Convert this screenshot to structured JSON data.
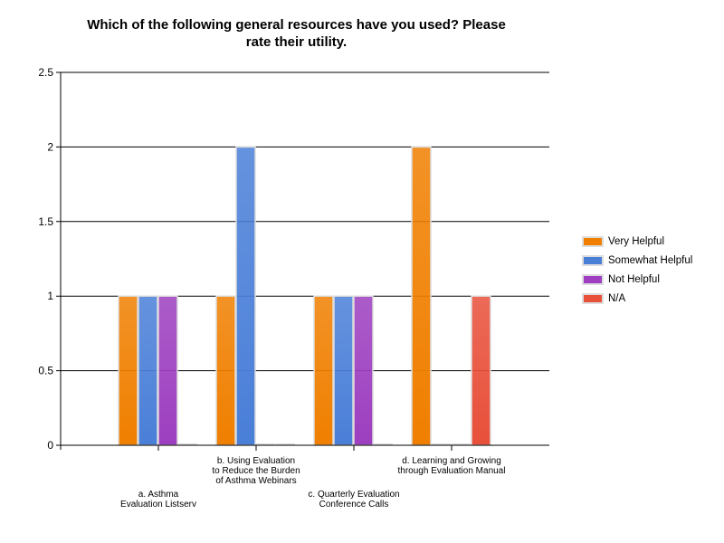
{
  "chart_data": {
    "type": "bar",
    "title": "Which of the following general resources have you used?  Please rate their utility.",
    "title_lines": [
      "Which of the following general resources have you used?  Please",
      "rate their utility."
    ],
    "xlabel": "",
    "ylabel": "",
    "ylim": [
      0,
      2.5
    ],
    "yticks": [
      "0",
      "0.5",
      "1",
      "1.5",
      "2",
      "2.5"
    ],
    "grid": true,
    "legend_position": "right",
    "categories": [
      "a. Asthma Evaluation Listserv",
      "b. Using Evaluation to Reduce the Burden of Asthma Webinars",
      "c. Quarterly Evaluation Conference Calls",
      "d. Learning and Growing through Evaluation Manual"
    ],
    "category_label_lines": [
      [
        "a. Asthma",
        "Evaluation Listserv"
      ],
      [
        "b. Using Evaluation",
        "to Reduce the Burden",
        "of Asthma Webinars"
      ],
      [
        "c. Quarterly Evaluation",
        "Conference Calls"
      ],
      [
        "d. Learning and Growing",
        "through Evaluation Manual"
      ]
    ],
    "series": [
      {
        "name": "Very Helpful",
        "color": "#f07f00",
        "values": [
          1,
          1,
          1,
          2
        ]
      },
      {
        "name": "Somewhat Helpful",
        "color": "#4a7fd8",
        "values": [
          1,
          2,
          1,
          0
        ]
      },
      {
        "name": "Not Helpful",
        "color": "#9d3fc0",
        "values": [
          1,
          0,
          1,
          0
        ]
      },
      {
        "name": "N/A",
        "color": "#e8503a",
        "values": [
          0,
          0,
          0,
          1
        ]
      }
    ]
  }
}
